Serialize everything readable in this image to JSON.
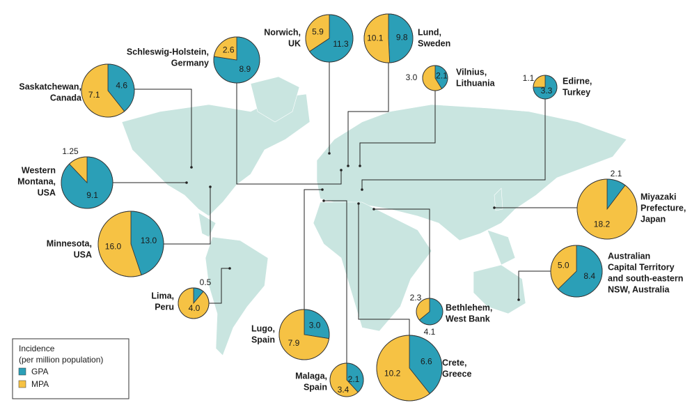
{
  "legend": {
    "title": [
      "Incidence",
      "(per million population)"
    ],
    "series": [
      {
        "name": "GPA",
        "color": "#2b9fb7"
      },
      {
        "name": "MPA",
        "color": "#f6c244"
      }
    ]
  },
  "locations": [
    {
      "name": [
        "Saskatchewan,",
        "Canada"
      ],
      "values": [
        4.6,
        7.1
      ],
      "value_labels": [
        "4.6",
        "7.1"
      ]
    },
    {
      "name": [
        "Schleswig-Holstein,",
        "Germany"
      ],
      "values": [
        8.9,
        2.6
      ],
      "value_labels": [
        "8.9",
        "2.6"
      ]
    },
    {
      "name": [
        "Norwich,",
        "UK"
      ],
      "values": [
        11.3,
        5.9
      ],
      "value_labels": [
        "11.3",
        "5.9"
      ]
    },
    {
      "name": [
        "Lund,",
        "Sweden"
      ],
      "values": [
        9.8,
        10.1
      ],
      "value_labels": [
        "9.8",
        "10.1"
      ]
    },
    {
      "name": [
        "Vilnius,",
        "Lithuania"
      ],
      "values": [
        2.1,
        3
      ],
      "value_labels": [
        "2.1",
        "3.0"
      ]
    },
    {
      "name": [
        "Edirne,",
        "Turkey"
      ],
      "values": [
        3.3,
        1.1
      ],
      "value_labels": [
        "3.3",
        "1.1"
      ]
    },
    {
      "name": [
        "Western",
        "Montana,",
        "USA"
      ],
      "values": [
        9.1,
        1.25
      ],
      "value_labels": [
        "9.1",
        "1.25"
      ]
    },
    {
      "name": [
        "Minnesota,",
        "USA"
      ],
      "values": [
        13,
        16
      ],
      "value_labels": [
        "13.0",
        "16.0"
      ]
    },
    {
      "name": [
        "Lima,",
        "Peru"
      ],
      "values": [
        0.5,
        4
      ],
      "value_labels": [
        "0.5",
        "4.0"
      ]
    },
    {
      "name": [
        "Lugo,",
        "Spain"
      ],
      "values": [
        3,
        7.9
      ],
      "value_labels": [
        "3.0",
        "7.9"
      ]
    },
    {
      "name": [
        "Malaga,",
        "Spain"
      ],
      "values": [
        2.1,
        3.4
      ],
      "value_labels": [
        "2.1",
        "3.4"
      ]
    },
    {
      "name": [
        "Crete,",
        "Greece"
      ],
      "values": [
        6.6,
        10.2
      ],
      "value_labels": [
        "6.6",
        "10.2"
      ]
    },
    {
      "name": [
        "Bethlehem,",
        "West Bank"
      ],
      "values": [
        4.1,
        2.3
      ],
      "value_labels": [
        "4.1",
        "2.3"
      ]
    },
    {
      "name": [
        "Miyazaki",
        "Prefecture,",
        "Japan"
      ],
      "values": [
        2.1,
        18.2
      ],
      "value_labels": [
        "2.1",
        "18.2"
      ]
    },
    {
      "name": [
        "Australian",
        "Capital Territory",
        "and south-eastern",
        "NSW, Australia"
      ],
      "values": [
        8.4,
        5
      ],
      "value_labels": [
        "8.4",
        "5.0"
      ]
    }
  ]
}
